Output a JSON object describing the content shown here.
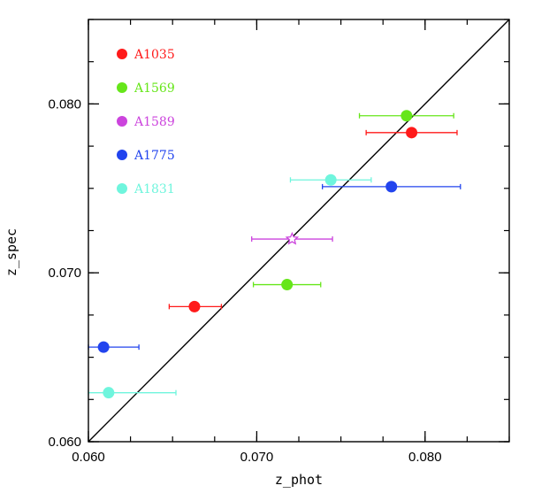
{
  "chart_data": {
    "type": "scatter",
    "xlabel": "z_phot",
    "ylabel": "z_spec",
    "xlim": [
      0.06,
      0.085
    ],
    "ylim": [
      0.06,
      0.085
    ],
    "x_ticks": [
      {
        "value": 0.06,
        "label": "0.060"
      },
      {
        "value": 0.07,
        "label": "0.070"
      },
      {
        "value": 0.08,
        "label": "0.080"
      }
    ],
    "y_ticks": [
      {
        "value": 0.06,
        "label": "0.060"
      },
      {
        "value": 0.07,
        "label": "0.070"
      },
      {
        "value": 0.08,
        "label": "0.080"
      }
    ],
    "minor_tick_step": 0.0025,
    "reference_line": {
      "type": "one-to-one",
      "color": "#000000"
    },
    "legend_position": "top-left",
    "series": [
      {
        "name": "A1035",
        "color": "#ff1a1a",
        "marker": "filled-circle",
        "points": [
          {
            "x": 0.0663,
            "y": 0.068,
            "xerr": [
              0.0648,
              0.0679
            ]
          },
          {
            "x": 0.0792,
            "y": 0.0783,
            "xerr": [
              0.0765,
              0.0819
            ]
          }
        ]
      },
      {
        "name": "A1569",
        "color": "#66e61a",
        "marker": "filled-circle",
        "points": [
          {
            "x": 0.0718,
            "y": 0.0693,
            "xerr": [
              0.0698,
              0.0738
            ]
          },
          {
            "x": 0.0789,
            "y": 0.0793,
            "xerr": [
              0.0761,
              0.0817
            ]
          }
        ]
      },
      {
        "name": "A1589",
        "color": "#cc44dd",
        "marker": "open-star",
        "points": [
          {
            "x": 0.0721,
            "y": 0.072,
            "xerr": [
              0.0697,
              0.0745
            ]
          }
        ]
      },
      {
        "name": "A1775",
        "color": "#2244ee",
        "marker": "filled-circle",
        "points": [
          {
            "x": 0.0609,
            "y": 0.0656,
            "xerr": [
              0.06,
              0.063
            ]
          },
          {
            "x": 0.078,
            "y": 0.0751,
            "xerr": [
              0.0739,
              0.0821
            ]
          }
        ]
      },
      {
        "name": "A1831",
        "color": "#6ff5dd",
        "marker": "filled-circle",
        "points": [
          {
            "x": 0.0612,
            "y": 0.0629,
            "xerr": [
              0.06,
              0.0652
            ]
          },
          {
            "x": 0.0744,
            "y": 0.0755,
            "xerr": [
              0.072,
              0.0768
            ]
          }
        ]
      }
    ]
  }
}
